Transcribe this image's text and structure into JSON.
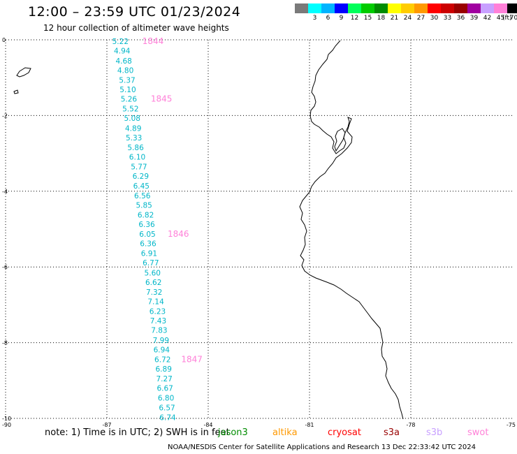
{
  "header": {
    "title": "12:00 – 23:59 UTC 01/23/2024",
    "subtitle": "12 hour collection of altimeter wave heights"
  },
  "legend": {
    "unit": "(ft)",
    "items": [
      {
        "label": "",
        "color": "#7a7a7a"
      },
      {
        "label": "3",
        "color": "#00ffff"
      },
      {
        "label": "6",
        "color": "#00b4ff"
      },
      {
        "label": "9",
        "color": "#0000ff"
      },
      {
        "label": "12",
        "color": "#00ff5a"
      },
      {
        "label": "15",
        "color": "#00cc00"
      },
      {
        "label": "18",
        "color": "#008c00"
      },
      {
        "label": "21",
        "color": "#ffff00"
      },
      {
        "label": "24",
        "color": "#ffcc00"
      },
      {
        "label": "27",
        "color": "#ff9900"
      },
      {
        "label": "30",
        "color": "#ff0000"
      },
      {
        "label": "33",
        "color": "#cc0000"
      },
      {
        "label": "36",
        "color": "#990000"
      },
      {
        "label": "39",
        "color": "#a000a0"
      },
      {
        "label": "42",
        "color": "#c8a0ff"
      },
      {
        "label": "45",
        "color": "#ff80d8"
      },
      {
        "label": "70",
        "color": "#000000"
      }
    ]
  },
  "axes": {
    "lat_labels": [
      "0",
      "-2",
      "-4",
      "-6",
      "-8",
      "-10"
    ],
    "lon_labels": [
      "-90",
      "-87",
      "-84",
      "-81",
      "-78",
      "-75"
    ]
  },
  "swh_color": "#00b6c8",
  "track": [
    {
      "lon": -86.6,
      "lat": -0.04,
      "value": "5.22"
    },
    {
      "lon": -86.55,
      "lat": -0.29,
      "value": "4.94"
    },
    {
      "lon": -86.5,
      "lat": -0.55,
      "value": "4.68"
    },
    {
      "lon": -86.45,
      "lat": -0.8,
      "value": "4.80"
    },
    {
      "lon": -86.4,
      "lat": -1.06,
      "value": "5.37"
    },
    {
      "lon": -86.38,
      "lat": -1.31,
      "value": "5.10"
    },
    {
      "lon": -86.35,
      "lat": -1.56,
      "value": "5.26"
    },
    {
      "lon": -86.3,
      "lat": -1.82,
      "value": "5.52"
    },
    {
      "lon": -86.25,
      "lat": -2.07,
      "value": "5.08"
    },
    {
      "lon": -86.22,
      "lat": -2.33,
      "value": "4.89"
    },
    {
      "lon": -86.2,
      "lat": -2.58,
      "value": "5.33"
    },
    {
      "lon": -86.15,
      "lat": -2.84,
      "value": "5.86"
    },
    {
      "lon": -86.1,
      "lat": -3.09,
      "value": "6.10"
    },
    {
      "lon": -86.05,
      "lat": -3.35,
      "value": "5.77"
    },
    {
      "lon": -86.0,
      "lat": -3.6,
      "value": "6.29"
    },
    {
      "lon": -85.98,
      "lat": -3.86,
      "value": "6.45"
    },
    {
      "lon": -85.95,
      "lat": -4.11,
      "value": "6.56"
    },
    {
      "lon": -85.9,
      "lat": -4.36,
      "value": "5.85"
    },
    {
      "lon": -85.85,
      "lat": -4.62,
      "value": "6.82"
    },
    {
      "lon": -85.82,
      "lat": -4.87,
      "value": "6.36"
    },
    {
      "lon": -85.8,
      "lat": -5.13,
      "value": "6.05"
    },
    {
      "lon": -85.78,
      "lat": -5.38,
      "value": "6.36"
    },
    {
      "lon": -85.75,
      "lat": -5.64,
      "value": "6.91"
    },
    {
      "lon": -85.7,
      "lat": -5.89,
      "value": "6.77"
    },
    {
      "lon": -85.65,
      "lat": -6.15,
      "value": "5.60"
    },
    {
      "lon": -85.62,
      "lat": -6.4,
      "value": "6.62"
    },
    {
      "lon": -85.6,
      "lat": -6.66,
      "value": "7.32"
    },
    {
      "lon": -85.55,
      "lat": -6.91,
      "value": "7.14"
    },
    {
      "lon": -85.5,
      "lat": -7.17,
      "value": "6.23"
    },
    {
      "lon": -85.48,
      "lat": -7.42,
      "value": "7.43"
    },
    {
      "lon": -85.45,
      "lat": -7.67,
      "value": "7.83"
    },
    {
      "lon": -85.4,
      "lat": -7.93,
      "value": "7.99"
    },
    {
      "lon": -85.38,
      "lat": -8.18,
      "value": "6.94"
    },
    {
      "lon": -85.35,
      "lat": -8.44,
      "value": "6.72"
    },
    {
      "lon": -85.32,
      "lat": -8.69,
      "value": "6.89"
    },
    {
      "lon": -85.3,
      "lat": -8.95,
      "value": "7.27"
    },
    {
      "lon": -85.28,
      "lat": -9.2,
      "value": "6.67"
    },
    {
      "lon": -85.25,
      "lat": -9.46,
      "value": "6.80"
    },
    {
      "lon": -85.22,
      "lat": -9.71,
      "value": "6.57"
    },
    {
      "lon": -85.2,
      "lat": -9.97,
      "value": "6.74"
    }
  ],
  "pass_color": "#ff80d8",
  "pass_labels": [
    {
      "lon": -85.95,
      "lat": -0.04,
      "text": "1844"
    },
    {
      "lon": -85.7,
      "lat": -1.56,
      "text": "1845"
    },
    {
      "lon": -85.2,
      "lat": -5.13,
      "text": "1846"
    },
    {
      "lon": -84.8,
      "lat": -8.44,
      "text": "1847"
    }
  ],
  "note": "note:  1) Time is in UTC; 2) SWH is in feet",
  "satellites": [
    {
      "name": "jason3",
      "color": "#008c00"
    },
    {
      "name": "altika",
      "color": "#ff9900"
    },
    {
      "name": "cryosat",
      "color": "#ff0000"
    },
    {
      "name": "s3a",
      "color": "#990000"
    },
    {
      "name": "s3b",
      "color": "#c8a0ff"
    },
    {
      "name": "swot",
      "color": "#ff80d8"
    }
  ],
  "footer": "NOAA/NESDIS Center for Satellite Applications and Research    13 Dec 22:33:42 UTC 2024"
}
